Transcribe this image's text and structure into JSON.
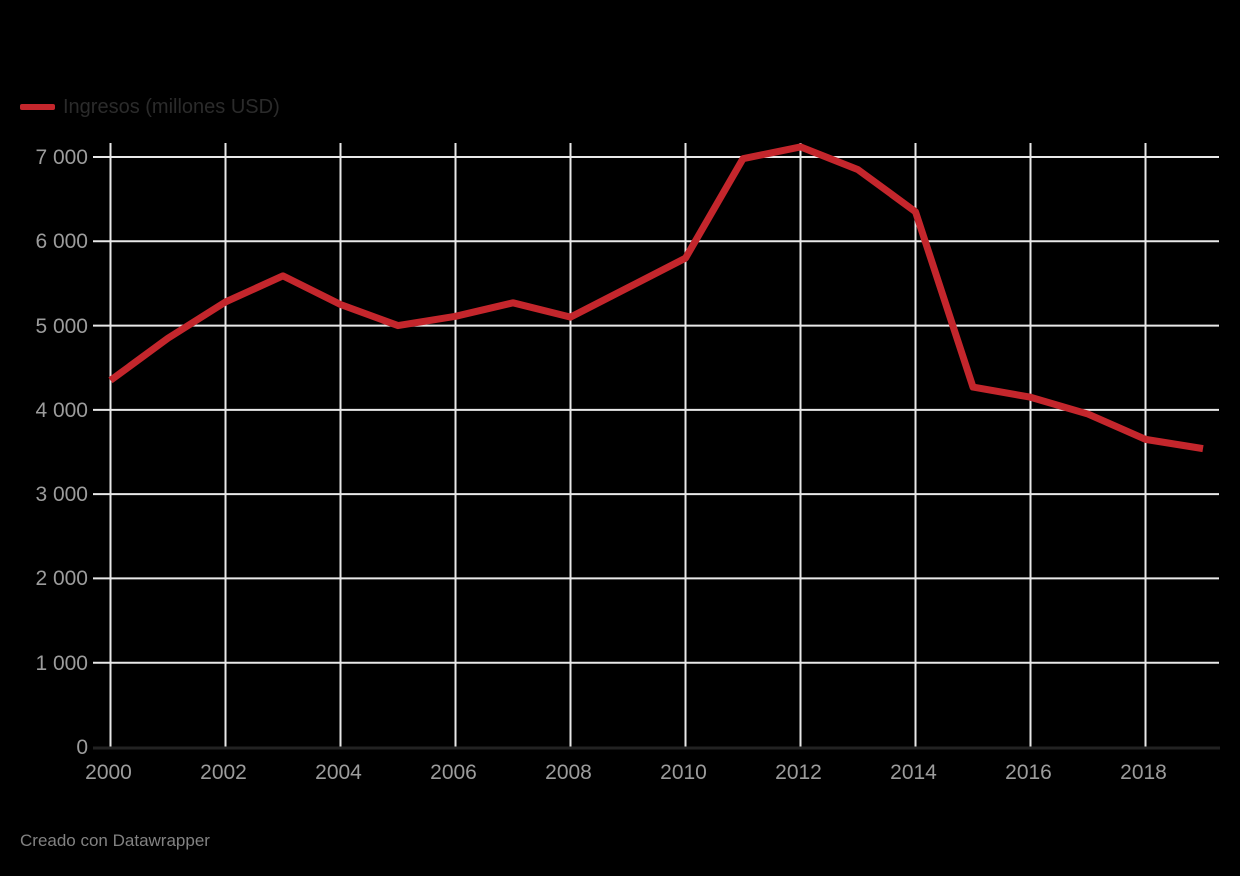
{
  "page": {
    "background": "#000000"
  },
  "legend": {
    "label": "Ingresos (millones USD)",
    "swatch_color": "#c4262c"
  },
  "footer": {
    "text": "Creado con Datawrapper"
  },
  "chart_data": {
    "type": "line",
    "title": "",
    "legend_label": "Ingresos (millones USD)",
    "legend_position": "top-left",
    "grid": true,
    "x": [
      2000,
      2001,
      2002,
      2003,
      2004,
      2005,
      2006,
      2007,
      2008,
      2009,
      2010,
      2011,
      2012,
      2013,
      2014,
      2015,
      2016,
      2017,
      2018,
      2019
    ],
    "series": [
      {
        "name": "Ingresos (millones USD)",
        "values": [
          4350,
          4850,
          5280,
          5590,
          5250,
          5000,
          5110,
          5270,
          5100,
          5450,
          5800,
          6980,
          7120,
          6850,
          6350,
          4270,
          4150,
          3950,
          3650,
          3540
        ]
      }
    ],
    "xlim": [
      2000,
      2019
    ],
    "ylim": [
      0,
      7000
    ],
    "x_ticks": [
      2000,
      2002,
      2004,
      2006,
      2008,
      2010,
      2012,
      2014,
      2016,
      2018
    ],
    "x_tick_labels": [
      "2000",
      "2002",
      "2004",
      "2006",
      "2008",
      "2010",
      "2012",
      "2014",
      "2016",
      "2018"
    ],
    "y_ticks": [
      0,
      1000,
      2000,
      3000,
      4000,
      5000,
      6000,
      7000
    ],
    "y_tick_labels": [
      "0",
      "1 000",
      "2 000",
      "3 000",
      "4 000",
      "5 000",
      "6 000",
      "7 000"
    ],
    "colors": {
      "line": "#c4262c",
      "grid": "#e8e8e8",
      "tick_label": "#9c9c9c",
      "legend_text": "#2b2b2b",
      "axis_baseline": "#222222",
      "background": "#000000",
      "footer_text": "#828282"
    }
  }
}
